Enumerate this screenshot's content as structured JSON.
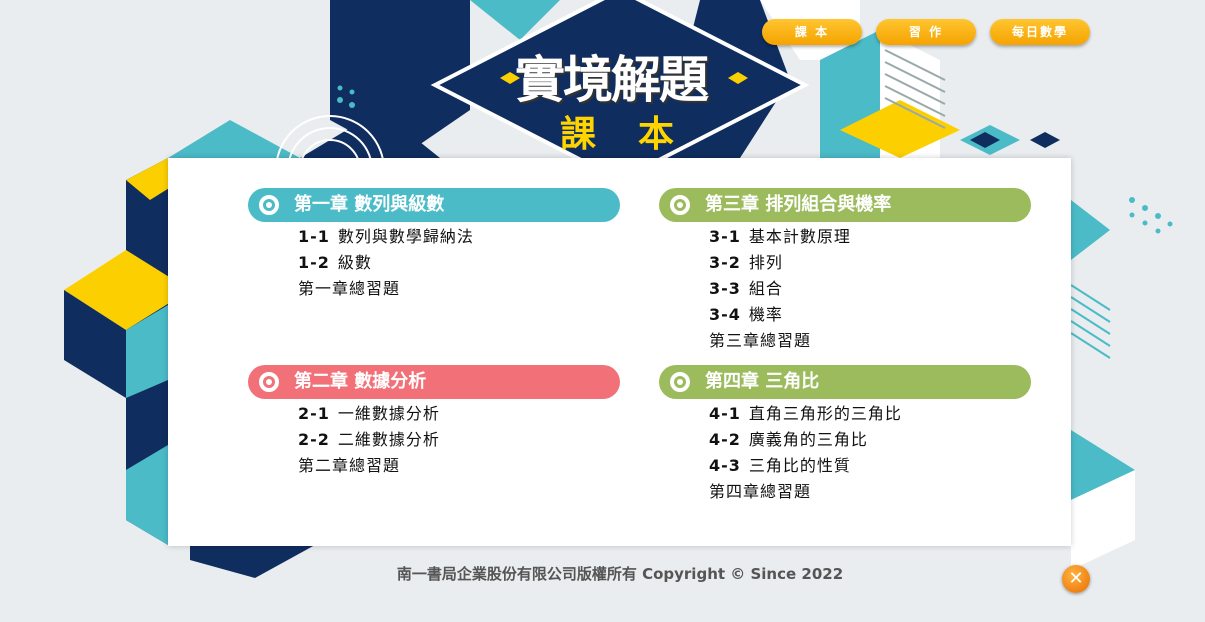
{
  "nav": {
    "textbook": "課 本",
    "workbook": "習 作",
    "daily": "每日數學"
  },
  "logo": {
    "title": "實境解題",
    "subtitle": "課本"
  },
  "chapters": [
    {
      "title": "第一章 數列與級數",
      "color": "#4bbbc8",
      "items": [
        {
          "num": "1-1",
          "label": "數列與數學歸納法"
        },
        {
          "num": "1-2",
          "label": "級數"
        },
        {
          "num": "",
          "label": "第一章總習題"
        }
      ]
    },
    {
      "title": "第二章 數據分析",
      "color": "#f27178",
      "items": [
        {
          "num": "2-1",
          "label": "一維數據分析"
        },
        {
          "num": "2-2",
          "label": "二維數據分析"
        },
        {
          "num": "",
          "label": "第二章總習題"
        }
      ]
    },
    {
      "title": "第三章 排列組合與機率",
      "color": "#9bbb5c",
      "items": [
        {
          "num": "3-1",
          "label": "基本計數原理"
        },
        {
          "num": "3-2",
          "label": "排列"
        },
        {
          "num": "3-3",
          "label": "組合"
        },
        {
          "num": "3-4",
          "label": "機率"
        },
        {
          "num": "",
          "label": "第三章總習題"
        }
      ]
    },
    {
      "title": "第四章 三角比",
      "color": "#9bbb5c",
      "items": [
        {
          "num": "4-1",
          "label": "直角三角形的三角比"
        },
        {
          "num": "4-2",
          "label": "廣義角的三角比"
        },
        {
          "num": "4-3",
          "label": "三角比的性質"
        },
        {
          "num": "",
          "label": "第四章總習題"
        }
      ]
    }
  ],
  "footer": "南一書局企業股份有限公司版權所有 Copyright © Since 2022",
  "close_icon": "close-icon"
}
